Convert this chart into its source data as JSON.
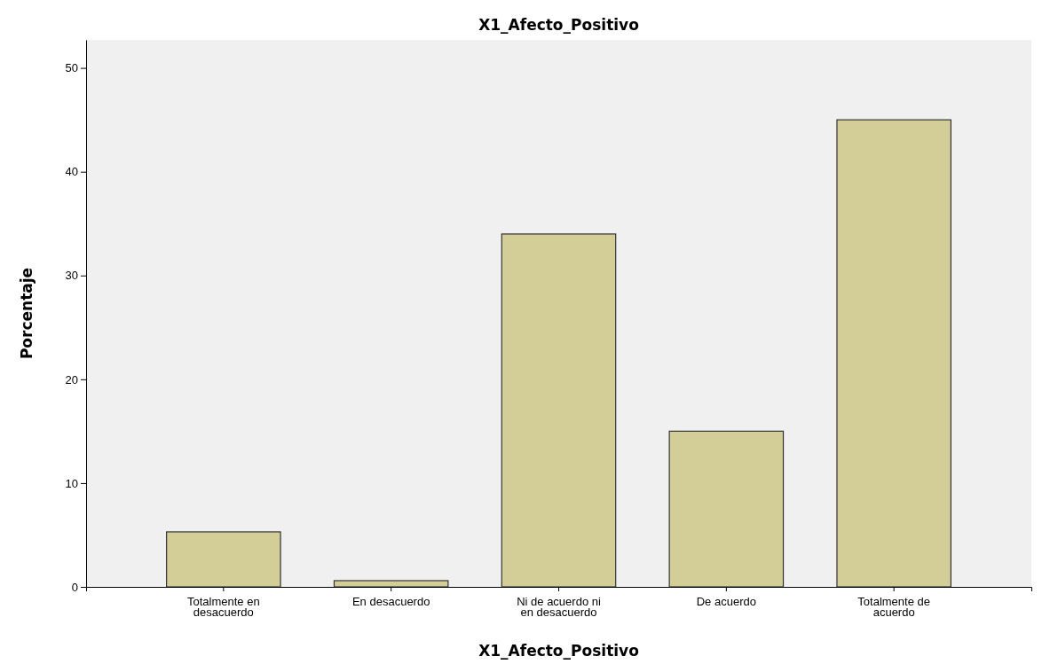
{
  "chart_data": {
    "type": "bar",
    "title": "X1_Afecto_Positivo",
    "xlabel": "X1_Afecto_Positivo",
    "ylabel": "Porcentaje",
    "categories": [
      "Totalmente en desacuerdo",
      "En desacuerdo",
      "Ni de acuerdo ni en desacuerdo",
      "De acuerdo",
      "Totalmente de acuerdo"
    ],
    "values": [
      5.3,
      0.6,
      34.0,
      15.0,
      45.0
    ],
    "color": "#d3cd98",
    "ylim": [
      0,
      52.7
    ],
    "yticks": [
      0,
      10,
      20,
      30,
      40,
      50
    ],
    "grid": false
  }
}
